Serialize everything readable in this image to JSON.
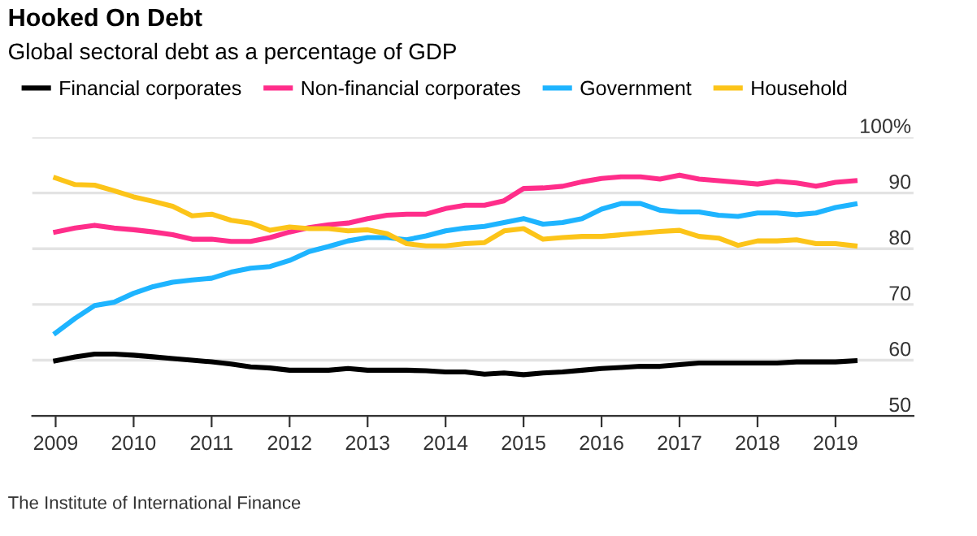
{
  "chart_data": {
    "type": "line",
    "title": "Hooked On Debt",
    "subtitle": "Global sectoral debt as a percentage of GDP",
    "x": [
      2009,
      2009.25,
      2009.5,
      2009.75,
      2010,
      2010.25,
      2010.5,
      2010.75,
      2011,
      2011.25,
      2011.5,
      2011.75,
      2012,
      2012.25,
      2012.5,
      2012.75,
      2013,
      2013.25,
      2013.5,
      2013.75,
      2014,
      2014.25,
      2014.5,
      2014.75,
      2015,
      2015.25,
      2015.5,
      2015.75,
      2016,
      2016.25,
      2016.5,
      2016.75,
      2017,
      2017.25,
      2017.5,
      2017.75,
      2018,
      2018.25,
      2018.5,
      2018.75,
      2019,
      2019.25
    ],
    "series": [
      {
        "name": "Financial corporates",
        "color": "#000000",
        "values": [
          59.9,
          60.6,
          61.1,
          61.1,
          60.9,
          60.6,
          60.3,
          60.0,
          59.7,
          59.3,
          58.8,
          58.6,
          58.2,
          58.2,
          58.2,
          58.5,
          58.2,
          58.2,
          58.2,
          58.1,
          57.9,
          57.9,
          57.5,
          57.7,
          57.4,
          57.7,
          57.9,
          58.2,
          58.5,
          58.7,
          58.9,
          58.9,
          59.2,
          59.5,
          59.5,
          59.5,
          59.5,
          59.5,
          59.7,
          59.7,
          59.7,
          59.9
        ]
      },
      {
        "name": "Non-financial corporates",
        "color": "#ff2d8a",
        "values": [
          83.0,
          83.7,
          84.2,
          83.7,
          83.4,
          83.0,
          82.5,
          81.7,
          81.7,
          81.3,
          81.3,
          82.0,
          83.0,
          83.8,
          84.3,
          84.6,
          85.4,
          86.0,
          86.2,
          86.2,
          87.2,
          87.8,
          87.8,
          88.6,
          90.8,
          90.9,
          91.2,
          92.0,
          92.6,
          92.9,
          92.9,
          92.5,
          93.2,
          92.5,
          92.2,
          91.9,
          91.6,
          92.1,
          91.8,
          91.2,
          91.9,
          92.2
        ]
      },
      {
        "name": "Government",
        "color": "#1eb4ff",
        "values": [
          64.9,
          67.5,
          69.8,
          70.4,
          72.0,
          73.2,
          74.0,
          74.4,
          74.7,
          75.8,
          76.5,
          76.8,
          77.9,
          79.5,
          80.4,
          81.4,
          82.0,
          82.0,
          81.6,
          82.3,
          83.2,
          83.7,
          84.0,
          84.7,
          85.4,
          84.4,
          84.7,
          85.4,
          87.1,
          88.1,
          88.1,
          86.9,
          86.6,
          86.6,
          86.0,
          85.8,
          86.4,
          86.4,
          86.1,
          86.4,
          87.4,
          88.0
        ]
      },
      {
        "name": "Household",
        "color": "#fcc419",
        "values": [
          92.7,
          91.5,
          91.4,
          90.4,
          89.3,
          88.5,
          87.6,
          85.9,
          86.2,
          85.1,
          84.6,
          83.3,
          83.9,
          83.6,
          83.6,
          83.2,
          83.4,
          82.7,
          80.9,
          80.5,
          80.5,
          80.9,
          81.1,
          83.2,
          83.6,
          81.7,
          82.0,
          82.2,
          82.2,
          82.5,
          82.8,
          83.1,
          83.3,
          82.2,
          81.9,
          80.6,
          81.4,
          81.4,
          81.6,
          80.9,
          80.9,
          80.5
        ]
      }
    ],
    "xlim": [
      2008.7,
      2020.0
    ],
    "xticks": [
      2009,
      2010,
      2011,
      2012,
      2013,
      2014,
      2015,
      2016,
      2017,
      2018,
      2019
    ],
    "ylim": [
      50,
      100
    ],
    "yticks": [
      50,
      60,
      70,
      80,
      90,
      {
        "value": 100,
        "label": "100%"
      }
    ],
    "grid": "y",
    "legend": "top",
    "marker": "none",
    "line_style": "solid",
    "annotations": [
      "The Institute of International Finance"
    ]
  }
}
